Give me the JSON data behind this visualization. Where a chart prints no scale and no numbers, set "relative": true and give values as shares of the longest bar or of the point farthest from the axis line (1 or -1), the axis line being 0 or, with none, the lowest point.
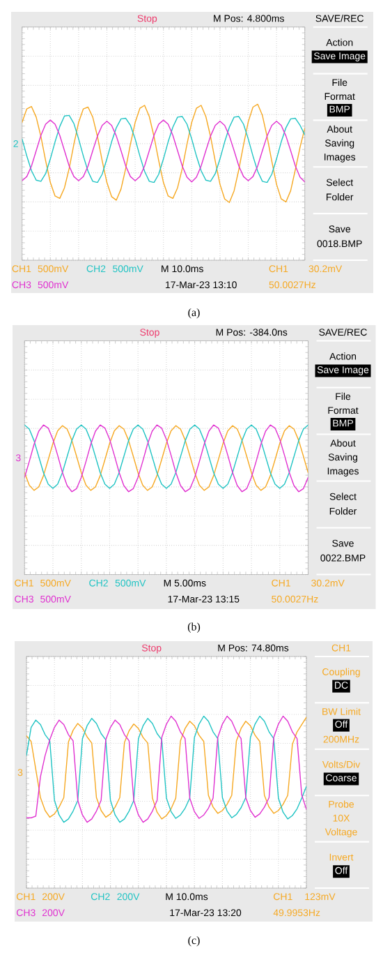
{
  "chart_data": [
    {
      "type": "line",
      "relative": true,
      "grid": true,
      "categories": [
        null,
        null,
        null,
        null,
        null,
        null,
        null,
        null,
        null,
        null,
        null,
        null,
        null,
        null,
        null,
        null,
        null,
        null,
        null,
        null,
        null,
        null,
        null,
        null,
        null,
        null,
        null,
        null,
        null,
        null,
        null,
        null,
        null,
        null,
        null,
        null,
        null,
        null,
        null,
        null,
        null,
        null,
        null,
        null,
        null,
        null,
        null,
        null,
        null,
        null,
        null,
        null,
        null,
        null,
        null,
        null,
        null,
        null,
        null,
        null,
        null
      ],
      "series": [
        {
          "name": "CH1",
          "color": "#f6a821",
          "values": [
            0.36,
            0.59,
            0.63,
            0.45,
            0.12,
            -0.29,
            -0.66,
            -0.89,
            -0.93,
            -0.75,
            -0.42,
            -0.01,
            0.36,
            0.59,
            0.62,
            0.45,
            0.12,
            -0.29,
            -0.66,
            -0.9,
            -0.96,
            -0.77,
            -0.42,
            -0.01,
            0.36,
            0.6,
            0.65,
            0.46,
            0.12,
            -0.29,
            -0.66,
            -0.89,
            -0.93,
            -0.75,
            -0.42,
            -0.01,
            0.36,
            0.6,
            0.65,
            0.46,
            0.12,
            -0.3,
            -0.69,
            -0.94,
            -1.0,
            -0.8,
            -0.44,
            -0.02,
            0.37,
            0.62,
            0.67,
            0.48,
            0.12,
            -0.3,
            -0.69,
            -0.94,
            -0.99,
            -0.8,
            -0.44,
            -0.06,
            0.26
          ]
        },
        {
          "name": "CH2",
          "color": "#1ec3c3",
          "values": [
            0.08,
            -0.21,
            -0.46,
            -0.62,
            -0.64,
            -0.51,
            -0.26,
            0.03,
            0.29,
            0.47,
            0.48,
            0.34,
            0.08,
            -0.21,
            -0.47,
            -0.64,
            -0.66,
            -0.52,
            -0.26,
            0.03,
            0.27,
            0.42,
            0.43,
            0.31,
            0.08,
            -0.21,
            -0.47,
            -0.64,
            -0.66,
            -0.52,
            -0.26,
            0.03,
            0.28,
            0.45,
            0.46,
            0.33,
            0.08,
            -0.21,
            -0.46,
            -0.62,
            -0.64,
            -0.51,
            -0.26,
            0.03,
            0.28,
            0.45,
            0.46,
            0.33,
            0.08,
            -0.21,
            -0.47,
            -0.64,
            -0.66,
            -0.52,
            -0.26,
            0.03,
            0.27,
            0.42,
            0.43,
            0.31,
            0.15
          ]
        },
        {
          "name": "CH3",
          "color": "#e030d0",
          "values": [
            -0.63,
            -0.56,
            -0.38,
            -0.12,
            0.14,
            0.33,
            0.4,
            0.33,
            0.14,
            -0.12,
            -0.38,
            -0.56,
            -0.63,
            -0.56,
            -0.38,
            -0.12,
            0.13,
            0.31,
            0.38,
            0.31,
            0.13,
            -0.12,
            -0.38,
            -0.56,
            -0.63,
            -0.56,
            -0.38,
            -0.12,
            0.14,
            0.33,
            0.4,
            0.33,
            0.14,
            -0.12,
            -0.38,
            -0.57,
            -0.65,
            -0.57,
            -0.38,
            -0.12,
            0.13,
            0.31,
            0.38,
            0.31,
            0.13,
            -0.12,
            -0.38,
            -0.56,
            -0.63,
            -0.56,
            -0.38,
            -0.12,
            0.13,
            0.31,
            0.38,
            0.31,
            0.13,
            -0.12,
            -0.38,
            -0.57,
            -0.65
          ]
        }
      ],
      "annotations": [
        "Stop",
        "M Pos: 4.800ms",
        "SAVE/REC",
        "Action",
        "Save Image",
        "File",
        "Format",
        "BMP",
        "About",
        "Saving",
        "Images",
        "Select",
        "Folder",
        "Save",
        "0018.BMP",
        "500mV",
        "500mV",
        "500mV",
        "M 10.0ms",
        "17-Mar-23 13:10",
        "CH1",
        "30.2mV",
        "50.0027Hz",
        "2",
        "(a)"
      ]
    },
    {
      "type": "line",
      "relative": true,
      "grid": true,
      "categories": [
        null,
        null,
        null,
        null,
        null,
        null,
        null,
        null,
        null,
        null,
        null,
        null,
        null,
        null,
        null,
        null,
        null,
        null,
        null,
        null,
        null,
        null,
        null,
        null,
        null,
        null,
        null,
        null,
        null,
        null,
        null,
        null,
        null,
        null,
        null,
        null,
        null,
        null,
        null,
        null,
        null,
        null,
        null,
        null,
        null,
        null,
        null,
        null,
        null,
        null,
        null,
        null,
        null,
        null,
        null,
        null,
        null,
        null,
        null,
        null,
        null
      ],
      "series": [
        {
          "name": "CH1",
          "color": "#f6a821",
          "values": [
            -0.44,
            -0.81,
            -0.96,
            -0.86,
            -0.53,
            -0.06,
            0.42,
            0.79,
            0.94,
            0.84,
            0.51,
            0.04,
            -0.44,
            -0.81,
            -0.96,
            -0.86,
            -0.53,
            -0.06,
            0.42,
            0.79,
            0.94,
            0.84,
            0.51,
            0.04,
            -0.44,
            -0.81,
            -0.96,
            -0.86,
            -0.53,
            -0.06,
            0.42,
            0.79,
            0.94,
            0.84,
            0.51,
            0.04,
            -0.44,
            -0.81,
            -0.96,
            -0.86,
            -0.53,
            -0.06,
            0.42,
            0.79,
            0.94,
            0.84,
            0.51,
            0.04,
            -0.44,
            -0.81,
            -0.96,
            -0.86,
            -0.53,
            -0.06,
            0.42,
            0.79,
            0.94,
            0.84,
            0.51,
            0.04,
            -0.44
          ]
        },
        {
          "name": "CH2",
          "color": "#1ec3c3",
          "values": [
            0.96,
            0.84,
            0.5,
            0.03,
            -0.44,
            -0.78,
            -0.9,
            -0.78,
            -0.44,
            0.03,
            0.5,
            0.84,
            0.96,
            0.84,
            0.5,
            0.03,
            -0.44,
            -0.78,
            -0.9,
            -0.78,
            -0.44,
            0.03,
            0.5,
            0.84,
            0.96,
            0.84,
            0.5,
            0.03,
            -0.44,
            -0.78,
            -0.9,
            -0.78,
            -0.44,
            0.03,
            0.5,
            0.84,
            0.96,
            0.84,
            0.5,
            0.03,
            -0.44,
            -0.78,
            -0.9,
            -0.78,
            -0.44,
            0.03,
            0.5,
            0.84,
            0.96,
            0.84,
            0.5,
            0.03,
            -0.44,
            -0.78,
            -0.9,
            -0.78,
            -0.44,
            0.03,
            0.5,
            0.84,
            0.96
          ]
        },
        {
          "name": "CH3",
          "color": "#e030d0",
          "values": [
            -0.58,
            -0.11,
            0.39,
            0.78,
            0.96,
            0.87,
            0.54,
            0.07,
            -0.43,
            -0.82,
            -1.0,
            -0.91,
            -0.58,
            -0.11,
            0.39,
            0.78,
            0.96,
            0.87,
            0.54,
            0.07,
            -0.43,
            -0.82,
            -1.0,
            -0.91,
            -0.58,
            -0.11,
            0.39,
            0.78,
            0.96,
            0.87,
            0.54,
            0.07,
            -0.43,
            -0.82,
            -1.0,
            -0.91,
            -0.58,
            -0.11,
            0.39,
            0.78,
            0.96,
            0.87,
            0.54,
            0.07,
            -0.43,
            -0.82,
            -1.0,
            -0.91,
            -0.58,
            -0.11,
            0.39,
            0.78,
            0.96,
            0.87,
            0.54,
            0.07,
            -0.43,
            -0.82,
            -1.0,
            -0.91,
            -0.58
          ]
        }
      ],
      "annotations": [
        "Stop",
        "M Pos: -384.0ns",
        "SAVE/REC",
        "Action",
        "Save Image",
        "File",
        "Format",
        "BMP",
        "About",
        "Saving",
        "Images",
        "Select",
        "Folder",
        "Save",
        "0022.BMP",
        "500mV",
        "500mV",
        "500mV",
        "M 5.00ms",
        "17-Mar-23 13:15",
        "CH1",
        "30.2mV",
        "50.0027Hz",
        "3",
        "(b)"
      ]
    },
    {
      "type": "line",
      "relative": true,
      "grid": true,
      "categories": [
        null,
        null,
        null,
        null,
        null,
        null,
        null,
        null,
        null,
        null,
        null,
        null,
        null,
        null,
        null,
        null,
        null,
        null,
        null,
        null,
        null,
        null,
        null,
        null,
        null,
        null,
        null,
        null,
        null,
        null,
        null,
        null,
        null,
        null,
        null,
        null,
        null,
        null,
        null,
        null,
        null,
        null,
        null,
        null,
        null,
        null,
        null,
        null,
        null,
        null,
        null,
        null,
        null,
        null,
        null,
        null,
        null,
        null,
        null,
        null,
        null
      ],
      "series": [
        {
          "name": "CH1",
          "color": "#f6a821",
          "values": [
            0.65,
            0.55,
            0.05,
            -0.45,
            -0.68,
            -0.8,
            -0.74,
            -0.62,
            -0.45,
            0.54,
            0.75,
            0.87,
            0.79,
            0.63,
            0.52,
            -0.45,
            -0.68,
            -0.8,
            -0.74,
            -0.62,
            -0.45,
            0.53,
            0.74,
            0.86,
            0.78,
            0.62,
            0.52,
            -0.46,
            -0.71,
            -0.83,
            -0.77,
            -0.65,
            -0.46,
            0.56,
            0.78,
            0.91,
            0.83,
            0.66,
            0.55,
            -0.41,
            -0.62,
            -0.73,
            -0.68,
            -0.57,
            -0.41,
            0.56,
            0.78,
            0.91,
            0.83,
            0.66,
            0.55,
            -0.41,
            -0.62,
            -0.73,
            -0.68,
            -0.57,
            -0.41,
            0.5,
            0.72,
            0.85,
            0.98
          ]
        },
        {
          "name": "CH2",
          "color": "#1ec3c3",
          "values": [
            0.3,
            0.8,
            0.93,
            0.85,
            0.67,
            0.56,
            -0.5,
            -0.76,
            -0.89,
            -0.83,
            -0.69,
            -0.5,
            0.6,
            0.83,
            0.96,
            0.87,
            0.69,
            0.58,
            -0.5,
            -0.76,
            -0.89,
            -0.83,
            -0.69,
            -0.5,
            0.6,
            0.83,
            0.96,
            0.87,
            0.69,
            0.58,
            -0.46,
            -0.7,
            -0.82,
            -0.76,
            -0.64,
            -0.46,
            0.62,
            0.86,
            1.0,
            0.91,
            0.72,
            0.6,
            -0.45,
            -0.69,
            -0.81,
            -0.75,
            -0.63,
            -0.45,
            0.62,
            0.86,
            1.0,
            0.91,
            0.72,
            0.6,
            -0.46,
            -0.71,
            -0.83,
            -0.77,
            -0.65,
            -0.46,
            -0.25
          ]
        },
        {
          "name": "CH3",
          "color": "#e030d0",
          "values": [
            -0.81,
            -0.81,
            -0.78,
            -0.08,
            0.3,
            0.58,
            0.8,
            0.93,
            0.85,
            0.67,
            0.56,
            -0.5,
            -0.76,
            -0.89,
            -0.83,
            -0.69,
            -0.5,
            0.58,
            0.8,
            0.93,
            0.85,
            0.67,
            0.56,
            -0.5,
            -0.76,
            -0.89,
            -0.83,
            -0.69,
            -0.5,
            0.62,
            0.86,
            1.0,
            0.91,
            0.72,
            0.6,
            -0.46,
            -0.7,
            -0.82,
            -0.76,
            -0.64,
            -0.46,
            0.62,
            0.86,
            1.0,
            0.91,
            0.72,
            0.6,
            -0.45,
            -0.68,
            -0.8,
            -0.74,
            -0.62,
            -0.45,
            0.62,
            0.86,
            1.0,
            0.91,
            0.72,
            0.6,
            -0.4,
            -0.66
          ]
        }
      ],
      "annotations": [
        "Stop",
        "M Pos: 74.80ms",
        "CH1",
        "Coupling",
        "DC",
        "BW Limit",
        "Off",
        "200MHz",
        "Volts/Div",
        "Coarse",
        "Probe",
        "10X",
        "Voltage",
        "Invert",
        "Off",
        "200V",
        "200V",
        "200V",
        "M 10.0ms",
        "17-Mar-23 13:20",
        "CH1",
        "123mV",
        "49.9953Hz",
        "3",
        "(c)"
      ]
    }
  ]
}
